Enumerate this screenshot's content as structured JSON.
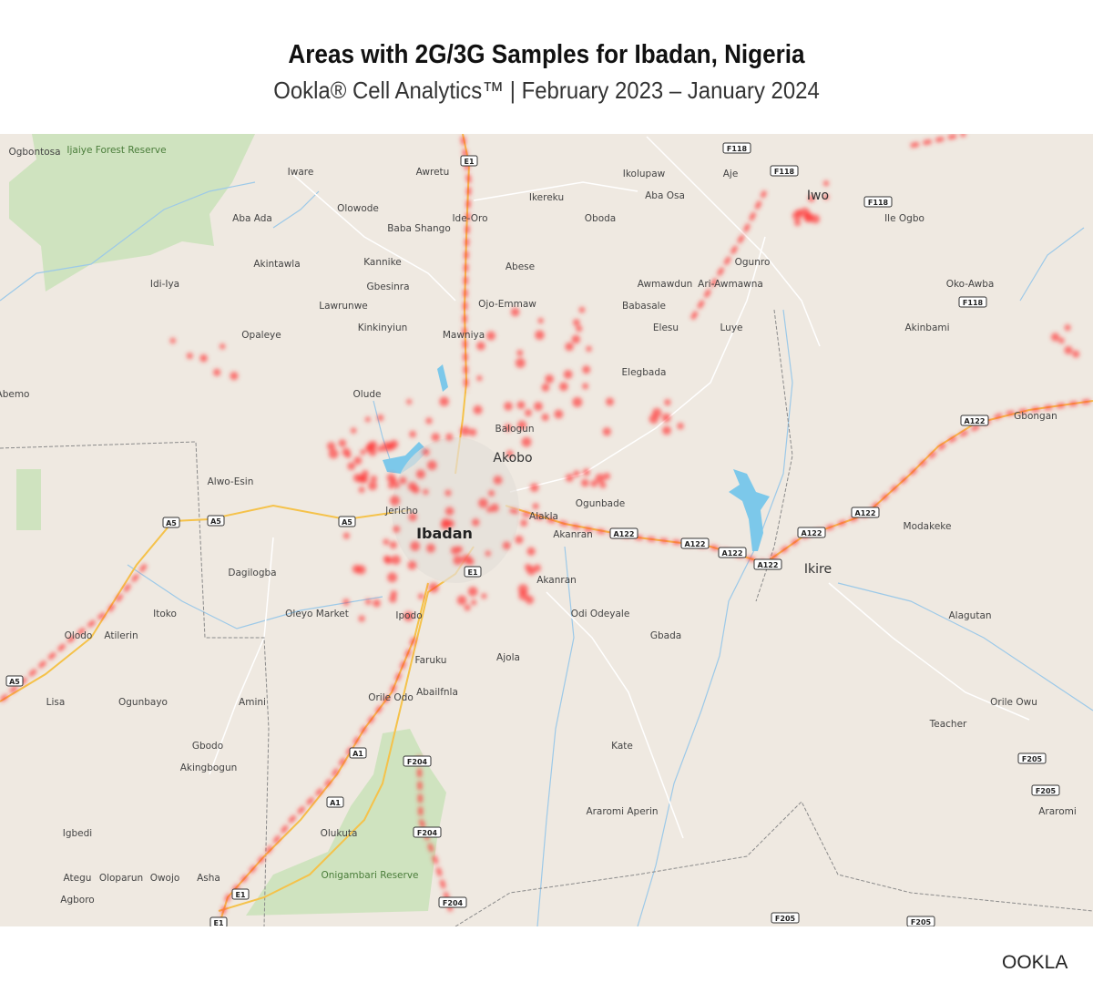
{
  "header": {
    "title": "Areas with 2G/3G Samples for Ibadan, Nigeria",
    "subtitle": "Ookla® Cell Analytics™ | February 2023 – January 2024"
  },
  "map": {
    "city": "Ibadan",
    "country": "Nigeria",
    "colors": {
      "land": "#efe9e1",
      "forest": "#cfe3bf",
      "water": "#7cc8ea",
      "road_major": "#f5c24a",
      "road_minor": "#ffffff",
      "samples": "#ff3b3b"
    },
    "sample_layer": "2G/3G samples",
    "places": [
      "Ogbontosa",
      "Ijaiye Forest Reserve",
      "Iware",
      "Awretu",
      "Ikolupaw",
      "Aje",
      "Iwo",
      "Aba Osa",
      "Ikereku",
      "Ile Ogbo",
      "Aba Ada",
      "Olowode",
      "Ide-Oro",
      "Oboda",
      "Baba Shango",
      "Akintawla",
      "Kannike",
      "Abese",
      "Ogunro",
      "Gbesinra",
      "Awmawdun",
      "Ari-Awmawna",
      "Oko-Awba",
      "Idi-Iya",
      "Lawrunwe",
      "Ojo-Emmaw",
      "Babasale",
      "Kinkinyiun",
      "Elesu",
      "Luye",
      "Akinbami",
      "Opaleye",
      "Mawniya",
      "Elegbada",
      "Abemo",
      "Olude",
      "Balogun",
      "Gbongan",
      "Akobo",
      "Alwo-Esin",
      "Ogunbade",
      "Jericho",
      "Alakla",
      "Ibadan",
      "Akanran",
      "Modakeke",
      "Ikire",
      "Dagilogba",
      "Akanran",
      "Itoko",
      "Oleyo Market",
      "Ipodo",
      "Odi Odeyale",
      "Alagutan",
      "Olodo",
      "Atilerin",
      "Gbada",
      "Faruku",
      "Ajola",
      "Abailfnla",
      "Orile Odo",
      "Lisa",
      "Ogunbayo",
      "Amini",
      "Orile Owu",
      "Teacher",
      "Gbodo",
      "Kate",
      "Akingbogun",
      "Araromi Aperin",
      "Araromi",
      "Igbedi",
      "Olukuta",
      "Onigambari Reserve",
      "Ategu",
      "Oloparun",
      "Owojo",
      "Asha",
      "Agboro"
    ],
    "road_shields": [
      "E1",
      "F118",
      "F118",
      "F118",
      "F118",
      "A5",
      "A5",
      "A5",
      "A5",
      "A122",
      "A122",
      "A122",
      "A122",
      "A122",
      "A122",
      "A122",
      "E1",
      "A1",
      "A1",
      "F204",
      "F204",
      "F204",
      "E1",
      "E1",
      "F205",
      "F205",
      "F205",
      "F205"
    ]
  },
  "footer": {
    "logo": "OOKLA"
  }
}
